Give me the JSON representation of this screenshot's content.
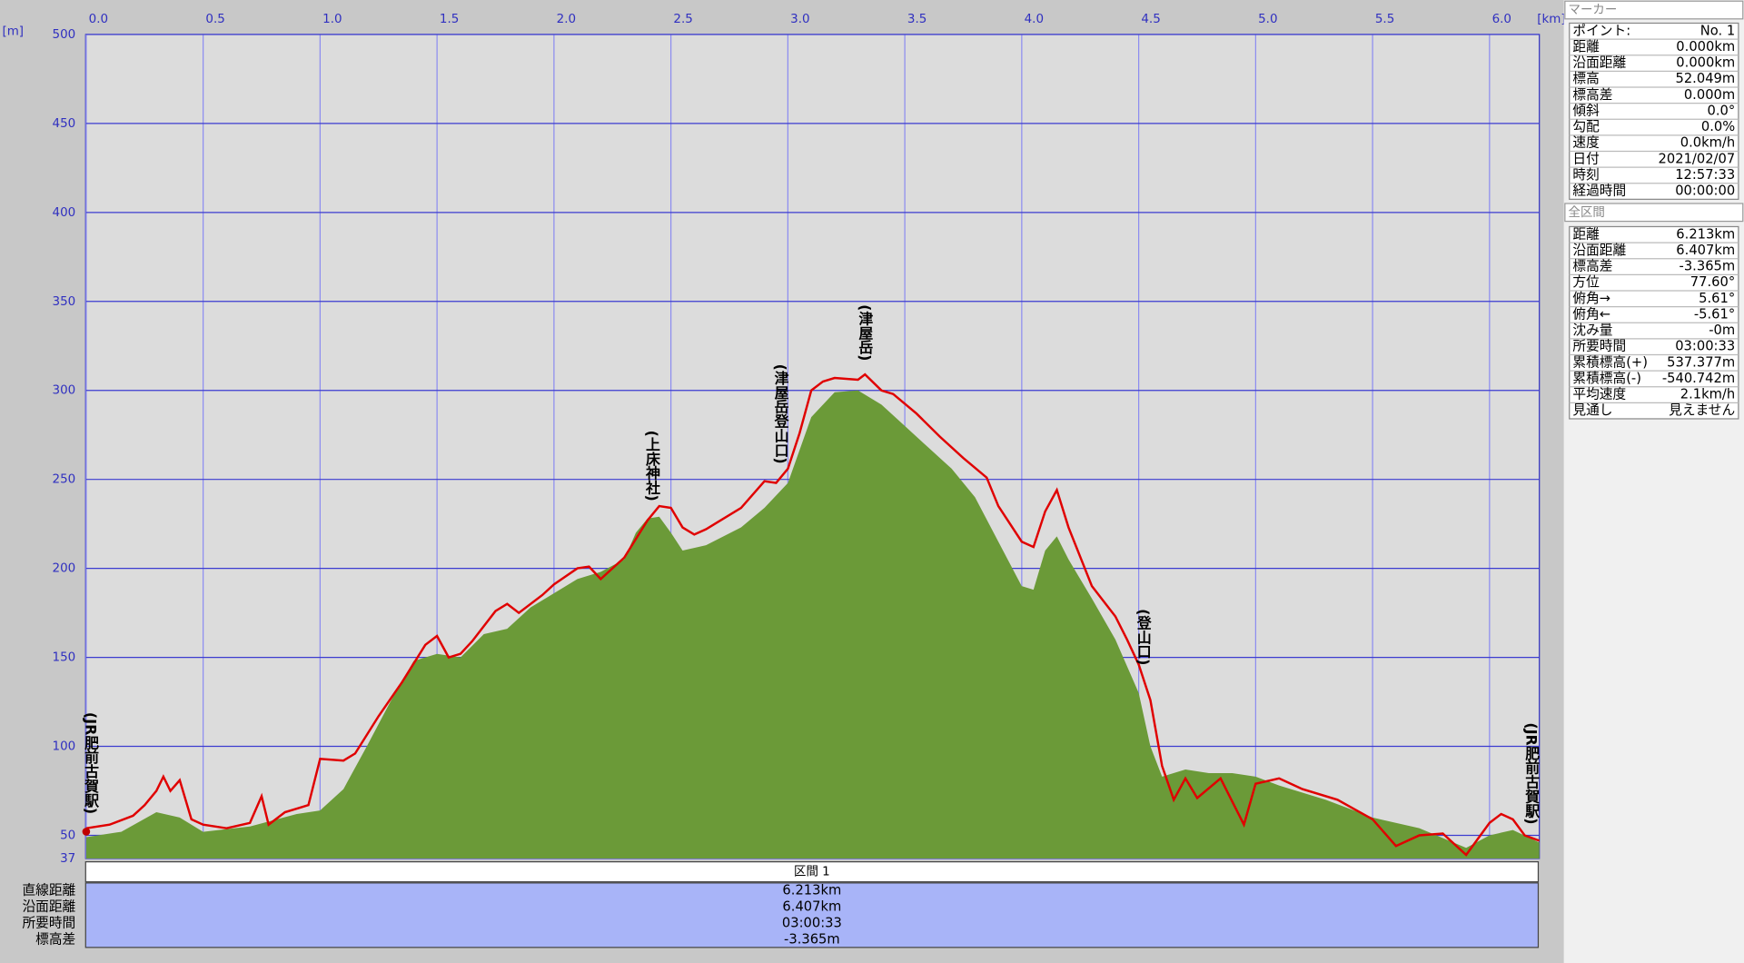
{
  "chart_data": {
    "type": "area",
    "xlabel": "[km]",
    "ylabel": "[m]",
    "xlim": [
      0,
      6.213
    ],
    "ylim": [
      37,
      500
    ],
    "xticks": [
      {
        "value": 0,
        "label": "0.0"
      },
      0.5,
      {
        "value": 1,
        "label": "1.0"
      },
      1.5,
      {
        "value": 2,
        "label": "2.0"
      },
      2.5,
      {
        "value": 3,
        "label": "3.0"
      },
      3.5,
      {
        "value": 4,
        "label": "4.0"
      },
      4.5,
      {
        "value": 5,
        "label": "5.0"
      },
      5.5,
      {
        "value": 6,
        "label": "6.0"
      }
    ],
    "yticks": [
      37,
      50,
      100,
      150,
      200,
      250,
      300,
      350,
      400,
      450,
      500
    ],
    "grid": true,
    "series": [
      {
        "color": "#6b9a38",
        "fill": true,
        "x": [
          0,
          0.15,
          0.3,
          0.4,
          0.5,
          0.7,
          0.9,
          1.0,
          1.1,
          1.2,
          1.3,
          1.4,
          1.5,
          1.6,
          1.7,
          1.8,
          1.9,
          2.0,
          2.1,
          2.2,
          2.3,
          2.35,
          2.4,
          2.45,
          2.5,
          2.55,
          2.65,
          2.8,
          2.9,
          3.0,
          3.1,
          3.2,
          3.3,
          3.4,
          3.5,
          3.6,
          3.7,
          3.8,
          3.9,
          4.0,
          4.05,
          4.1,
          4.15,
          4.2,
          4.3,
          4.4,
          4.5,
          4.55,
          4.6,
          4.7,
          4.8,
          4.9,
          5.0,
          5.1,
          5.3,
          5.5,
          5.7,
          5.9,
          6.0,
          6.1,
          6.213
        ],
        "values": [
          49,
          52,
          63,
          60,
          52,
          55,
          62,
          64,
          76,
          100,
          125,
          148,
          152,
          150,
          163,
          166,
          178,
          186,
          194,
          198,
          205,
          220,
          228,
          229,
          220,
          210,
          213,
          223,
          234,
          248,
          285,
          299,
          300,
          292,
          280,
          268,
          256,
          240,
          215,
          190,
          188,
          210,
          218,
          205,
          183,
          160,
          130,
          100,
          83,
          87,
          85,
          85,
          83,
          78,
          70,
          60,
          54,
          43,
          50,
          53,
          46
        ]
      },
      {
        "color": "#e00000",
        "fill": false,
        "x": [
          0,
          0.1,
          0.2,
          0.25,
          0.3,
          0.33,
          0.36,
          0.4,
          0.45,
          0.5,
          0.6,
          0.7,
          0.75,
          0.78,
          0.85,
          0.95,
          1.0,
          1.1,
          1.15,
          1.25,
          1.35,
          1.45,
          1.5,
          1.55,
          1.6,
          1.65,
          1.75,
          1.8,
          1.85,
          1.95,
          2.0,
          2.1,
          2.15,
          2.2,
          2.3,
          2.4,
          2.45,
          2.5,
          2.55,
          2.6,
          2.65,
          2.7,
          2.8,
          2.9,
          2.95,
          3.0,
          3.05,
          3.1,
          3.15,
          3.2,
          3.3,
          3.33,
          3.4,
          3.45,
          3.55,
          3.65,
          3.75,
          3.85,
          3.9,
          4.0,
          4.05,
          4.1,
          4.15,
          4.2,
          4.3,
          4.4,
          4.45,
          4.5,
          4.55,
          4.6,
          4.65,
          4.7,
          4.75,
          4.85,
          4.9,
          4.95,
          5.0,
          5.1,
          5.2,
          5.35,
          5.5,
          5.6,
          5.7,
          5.8,
          5.9,
          6.0,
          6.05,
          6.1,
          6.15,
          6.213
        ],
        "values": [
          54,
          56,
          61,
          67,
          75,
          83,
          75,
          81,
          59,
          56,
          54,
          57,
          72,
          56,
          63,
          67,
          93,
          92,
          96,
          117,
          136,
          157,
          162,
          150,
          152,
          159,
          176,
          180,
          175,
          185,
          191,
          200,
          201,
          194,
          206,
          227,
          235,
          234,
          223,
          219,
          222,
          226,
          234,
          249,
          248,
          256,
          276,
          300,
          305,
          307,
          306,
          309,
          300,
          298,
          287,
          274,
          262,
          251,
          235,
          215,
          212,
          232,
          244,
          223,
          190,
          173,
          160,
          146,
          126,
          89,
          70,
          82,
          71,
          82,
          69,
          56,
          79,
          82,
          76,
          70,
          59,
          44,
          50,
          51,
          39,
          57,
          62,
          59,
          50,
          47
        ]
      }
    ],
    "annotations": [
      {
        "text": "(JR肥前古賀駅)",
        "x": 0.02
      },
      {
        "text": "(上床神社)",
        "x": 2.42
      },
      {
        "text": "(津屋岳登山口)",
        "x": 2.97
      },
      {
        "text": "(津屋岳)",
        "x": 3.33
      },
      {
        "text": "(登山口)",
        "x": 4.52
      },
      {
        "text": "(JR肥前古賀駅)",
        "x": 6.18
      }
    ],
    "marker": {
      "x": 0,
      "value": 52.049,
      "color": "#c00000"
    }
  },
  "marker_panel": {
    "title": "マーカー",
    "rows": [
      [
        "ポイント:",
        "No. 1"
      ],
      [
        "距離",
        "0.000km"
      ],
      [
        "沿面距離",
        "0.000km"
      ],
      [
        "標高",
        "52.049m"
      ],
      [
        "標高差",
        "0.000m"
      ],
      [
        "傾斜",
        "0.0°"
      ],
      [
        "勾配",
        "0.0%"
      ],
      [
        "速度",
        "0.0km/h"
      ],
      [
        "日付",
        "2021/02/07"
      ],
      [
        "時刻",
        "12:57:33"
      ],
      [
        "経過時間",
        "00:00:00"
      ]
    ]
  },
  "section_panel": {
    "title": "全区間",
    "rows": [
      [
        "距離",
        "6.213km"
      ],
      [
        "沿面距離",
        "6.407km"
      ],
      [
        "標高差",
        "-3.365m"
      ],
      [
        "方位",
        "77.60°"
      ],
      [
        "俯角→",
        "5.61°"
      ],
      [
        "俯角←",
        "-5.61°"
      ],
      [
        "沈み量",
        "-0m"
      ],
      [
        "所要時間",
        "03:00:33"
      ],
      [
        "累積標高(+)",
        "537.377m"
      ],
      [
        "累積標高(-)",
        "-540.742m"
      ],
      [
        "平均速度",
        "2.1km/h"
      ],
      [
        "見通し",
        "見えません"
      ]
    ]
  },
  "section_table": {
    "header": "区間 1",
    "rows": [
      [
        "直線距離",
        "6.213km"
      ],
      [
        "沿面距離",
        "6.407km"
      ],
      [
        "所要時間",
        "03:00:33"
      ],
      [
        "標高差",
        "-3.365m"
      ]
    ]
  }
}
